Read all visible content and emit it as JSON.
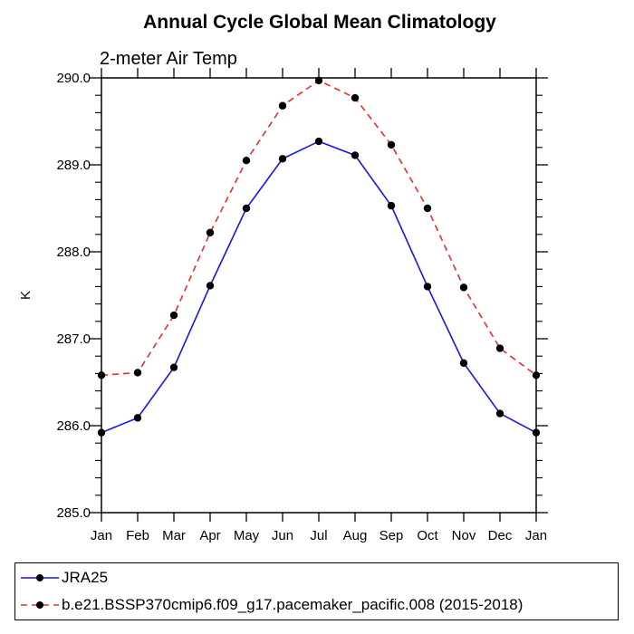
{
  "figure": {
    "title": "Annual Cycle Global Mean Climatology",
    "subtitle": "2-meter Air Temp",
    "y_axis_label": "K"
  },
  "colors": {
    "series1": "#1414f0",
    "series2": "#ee2b2b",
    "marker": "#000000",
    "axis": "#000000"
  },
  "legend": {
    "entries": [
      {
        "label": "JRA25",
        "color": "#1414f0",
        "style": "solid",
        "marker": "filled-circle"
      },
      {
        "label": "b.e21.BSSP370cmip6.f09_g17.pacemaker_pacific.008 (2015-2018)",
        "color": "#ee2b2b",
        "style": "dashed",
        "marker": "filled-circle"
      }
    ]
  },
  "chart_data": {
    "type": "line",
    "title": "Annual Cycle Global Mean Climatology",
    "subtitle": "2-meter Air Temp",
    "xlabel": "",
    "ylabel": "K",
    "categories": [
      "Jan",
      "Feb",
      "Mar",
      "Apr",
      "May",
      "Jun",
      "Jul",
      "Aug",
      "Sep",
      "Oct",
      "Nov",
      "Dec",
      "Jan"
    ],
    "series": [
      {
        "name": "JRA25",
        "color": "#1414f0",
        "line_style": "solid",
        "marker": "filled-circle",
        "marker_color": "#000000",
        "values": [
          285.92,
          286.09,
          286.67,
          287.61,
          288.5,
          289.07,
          289.27,
          289.11,
          288.53,
          287.6,
          286.72,
          286.14,
          285.92
        ]
      },
      {
        "name": "b.e21.BSSP370cmip6.f09_g17.pacemaker_pacific.008 (2015-2018)",
        "color": "#ee2b2b",
        "line_style": "dashed",
        "marker": "filled-circle",
        "marker_color": "#000000",
        "values": [
          286.58,
          286.61,
          287.27,
          288.22,
          289.05,
          289.68,
          289.97,
          289.77,
          289.23,
          288.5,
          287.59,
          286.89,
          286.58
        ]
      }
    ],
    "ylim": [
      285.0,
      290.0
    ],
    "y_major_ticks": [
      285.0,
      286.0,
      287.0,
      288.0,
      289.0,
      290.0
    ],
    "y_tick_labels": [
      "285.0",
      "286.0",
      "287.0",
      "288.0",
      "289.0",
      "290.0"
    ],
    "y_minor_step": 0.2,
    "grid": false,
    "legend_position": "bottom"
  }
}
